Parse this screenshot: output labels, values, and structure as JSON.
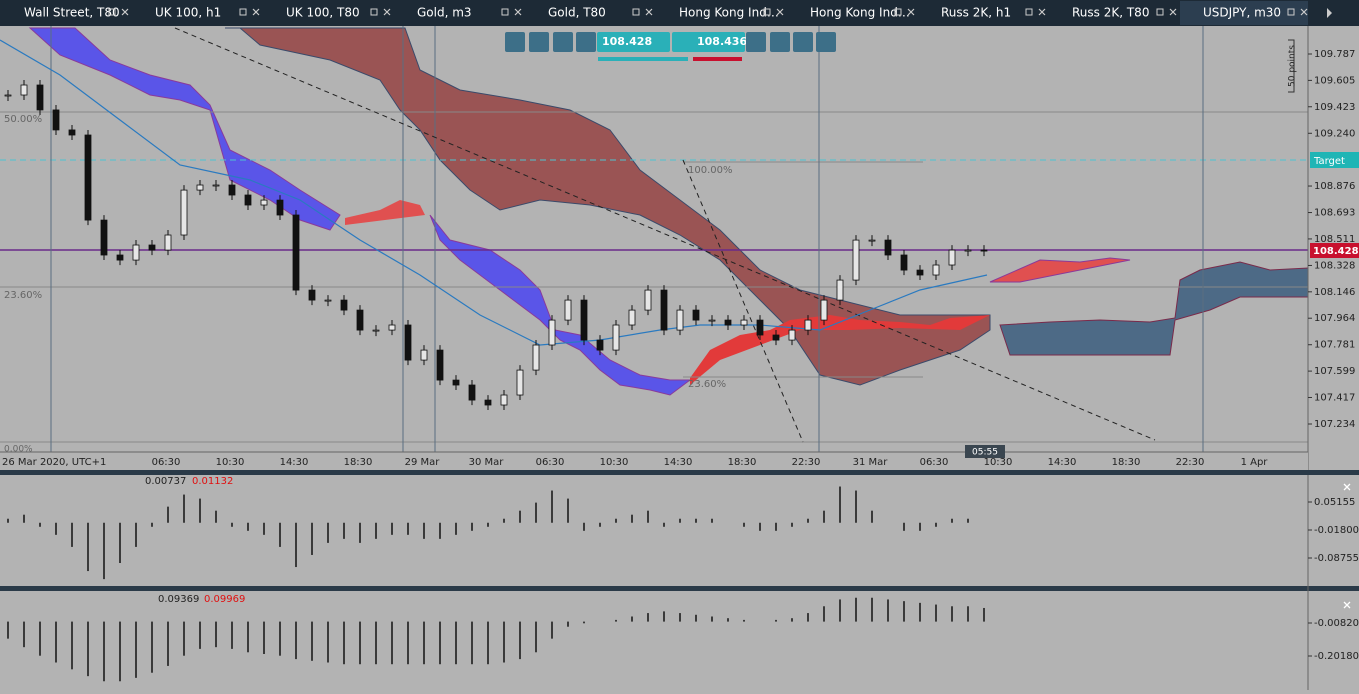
{
  "tabs": [
    "Wall Street, T80",
    "UK 100, h1",
    "UK 100, T80",
    "Gold, m3",
    "Gold, T80",
    "Hong Kong Ind…",
    "Hong Kong Ind…",
    "Russ 2K, h1",
    "Russ 2K, T80",
    "USDJPY, m30"
  ],
  "toolbar": {
    "bid": "108.428",
    "ask": "108.436"
  },
  "main_chart": {
    "price_labels": [
      "109.787",
      "109.605",
      "109.423",
      "109.240",
      "108.876",
      "108.693",
      "108.511",
      "108.328",
      "108.146",
      "107.964",
      "107.781",
      "107.599",
      "107.417",
      "107.234"
    ],
    "current_price": "108.428",
    "target_label": "Target",
    "ruler_label": "50 points",
    "fib_left": [
      "50.00%",
      "23.60%",
      "0.00%"
    ],
    "fib_center": [
      "100.00%",
      "23.60%"
    ],
    "countdown": "05:55",
    "start_label": "26 Mar 2020, UTC+1",
    "time_labels": [
      "06:30",
      "10:30",
      "14:30",
      "18:30",
      "29 Mar",
      "30 Mar",
      "06:30",
      "10:30",
      "14:30",
      "18:30",
      "22:30",
      "31 Mar",
      "06:30",
      "10:30",
      "14:30",
      "18:30",
      "22:30",
      "1 Apr"
    ],
    "closes": [
      109.504,
      109.573,
      109.401,
      109.263,
      109.228,
      108.641,
      108.4,
      108.365,
      108.469,
      108.434,
      108.538,
      108.848,
      108.883,
      108.883,
      108.814,
      108.745,
      108.779,
      108.676,
      108.158,
      108.089,
      108.089,
      108.02,
      107.882,
      107.882,
      107.917,
      107.675,
      107.744,
      107.537,
      107.503,
      107.399,
      107.365,
      107.434,
      107.606,
      107.779,
      107.951,
      108.089,
      107.813,
      107.744,
      107.917,
      108.02,
      108.158,
      107.882,
      108.02,
      107.951,
      107.951,
      107.917,
      107.951,
      107.848,
      107.813,
      107.882,
      107.951,
      108.089,
      108.227,
      108.503,
      108.503,
      108.4,
      108.296,
      108.262,
      108.331,
      108.434,
      108.434,
      108.428
    ]
  },
  "oscillator_1": {
    "readouts": [
      "0.00737",
      "0.01132"
    ],
    "axis_labels": [
      "0.05155",
      "-0.01800",
      "-0.08755"
    ],
    "histogram": [
      0.01,
      0.02,
      -0.01,
      -0.03,
      -0.06,
      -0.12,
      -0.14,
      -0.1,
      -0.06,
      -0.01,
      0.04,
      0.07,
      0.06,
      0.03,
      -0.01,
      -0.02,
      -0.03,
      -0.06,
      -0.11,
      -0.08,
      -0.05,
      -0.04,
      -0.05,
      -0.04,
      -0.03,
      -0.03,
      -0.04,
      -0.04,
      -0.03,
      -0.02,
      -0.01,
      0.01,
      0.03,
      0.05,
      0.08,
      0.06,
      -0.02,
      -0.01,
      0.01,
      0.02,
      0.03,
      -0.01,
      0.01,
      0.01,
      0.01,
      0.0,
      -0.01,
      -0.02,
      -0.02,
      -0.01,
      0.01,
      0.03,
      0.09,
      0.08,
      0.03,
      0.0,
      -0.02,
      -0.02,
      -0.01,
      0.01,
      0.01,
      0.0
    ]
  },
  "oscillator_2": {
    "readouts": [
      "0.09369",
      "0.09969"
    ],
    "axis_labels": [
      "-0.00820",
      "-0.20180"
    ],
    "histogram": [
      -0.1,
      -0.15,
      -0.2,
      -0.24,
      -0.28,
      -0.32,
      -0.35,
      -0.35,
      -0.33,
      -0.3,
      -0.26,
      -0.2,
      -0.16,
      -0.15,
      -0.16,
      -0.18,
      -0.19,
      -0.2,
      -0.22,
      -0.23,
      -0.24,
      -0.25,
      -0.25,
      -0.25,
      -0.25,
      -0.25,
      -0.25,
      -0.25,
      -0.25,
      -0.25,
      -0.25,
      -0.24,
      -0.22,
      -0.18,
      -0.1,
      -0.03,
      -0.01,
      0.0,
      0.01,
      0.03,
      0.05,
      0.06,
      0.05,
      0.04,
      0.03,
      0.02,
      0.01,
      0.0,
      0.01,
      0.02,
      0.05,
      0.09,
      0.13,
      0.14,
      0.14,
      0.13,
      0.12,
      0.11,
      0.1,
      0.09,
      0.09,
      0.08
    ]
  }
}
